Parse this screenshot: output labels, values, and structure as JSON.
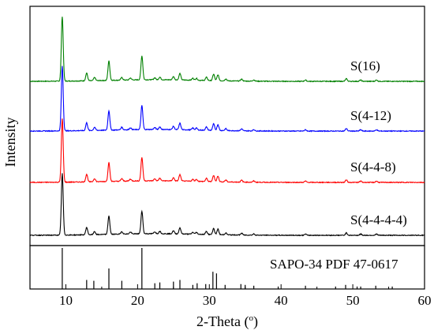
{
  "chart_data": {
    "type": "line",
    "xlabel": "2-Theta (",
    "xlabel_sup": "o",
    "xlabel_suffix": ")",
    "ylabel": "Intensity",
    "xlim": [
      5,
      60
    ],
    "xticks": [
      10,
      20,
      30,
      40,
      50,
      60
    ],
    "yticks": "none",
    "grid": false,
    "legend": "inline labels at right of each trace",
    "peaks": [
      {
        "x": 9.5,
        "h": 1.0
      },
      {
        "x": 12.9,
        "h": 0.12
      },
      {
        "x": 14.0,
        "h": 0.05
      },
      {
        "x": 16.0,
        "h": 0.3
      },
      {
        "x": 17.8,
        "h": 0.04
      },
      {
        "x": 19.0,
        "h": 0.03
      },
      {
        "x": 20.6,
        "h": 0.37
      },
      {
        "x": 22.4,
        "h": 0.03
      },
      {
        "x": 23.1,
        "h": 0.04
      },
      {
        "x": 25.0,
        "h": 0.05
      },
      {
        "x": 25.9,
        "h": 0.1
      },
      {
        "x": 27.7,
        "h": 0.03
      },
      {
        "x": 28.2,
        "h": 0.03
      },
      {
        "x": 29.6,
        "h": 0.05
      },
      {
        "x": 30.6,
        "h": 0.1
      },
      {
        "x": 31.2,
        "h": 0.09
      },
      {
        "x": 32.3,
        "h": 0.03
      },
      {
        "x": 34.5,
        "h": 0.03
      },
      {
        "x": 36.2,
        "h": 0.02
      },
      {
        "x": 43.4,
        "h": 0.02
      },
      {
        "x": 49.1,
        "h": 0.04
      },
      {
        "x": 51.1,
        "h": 0.02
      },
      {
        "x": 53.3,
        "h": 0.02
      }
    ],
    "series": [
      {
        "name": "S(16)",
        "color": "#008000",
        "offset": 3,
        "scale": 1.0
      },
      {
        "name": "S(4-12)",
        "color": "#0000ff",
        "offset": 2,
        "scale": 1.0
      },
      {
        "name": "S(4-4-8)",
        "color": "#ff0000",
        "offset": 1,
        "scale": 0.98
      },
      {
        "name": "S(4-4-4-4)",
        "color": "#000000",
        "offset": 0,
        "scale": 0.95
      }
    ],
    "reference": {
      "name": "SAPO-34 PDF 47-0617",
      "lines": [
        {
          "x": 9.5,
          "h": 1.0
        },
        {
          "x": 12.9,
          "h": 0.22
        },
        {
          "x": 13.9,
          "h": 0.2
        },
        {
          "x": 16.0,
          "h": 0.5
        },
        {
          "x": 17.8,
          "h": 0.2
        },
        {
          "x": 20.6,
          "h": 1.0
        },
        {
          "x": 22.4,
          "h": 0.14
        },
        {
          "x": 23.1,
          "h": 0.16
        },
        {
          "x": 25.0,
          "h": 0.18
        },
        {
          "x": 25.9,
          "h": 0.22
        },
        {
          "x": 27.7,
          "h": 0.1
        },
        {
          "x": 28.3,
          "h": 0.14
        },
        {
          "x": 29.5,
          "h": 0.12
        },
        {
          "x": 30.5,
          "h": 0.42
        },
        {
          "x": 31.0,
          "h": 0.38
        },
        {
          "x": 32.2,
          "h": 0.1
        },
        {
          "x": 34.4,
          "h": 0.12
        },
        {
          "x": 35.0,
          "h": 0.1
        },
        {
          "x": 36.2,
          "h": 0.08
        },
        {
          "x": 39.6,
          "h": 0.06
        },
        {
          "x": 43.4,
          "h": 0.08
        },
        {
          "x": 47.6,
          "h": 0.06
        },
        {
          "x": 49.0,
          "h": 0.1
        },
        {
          "x": 50.6,
          "h": 0.06
        },
        {
          "x": 51.1,
          "h": 0.06
        },
        {
          "x": 53.2,
          "h": 0.08
        },
        {
          "x": 55.5,
          "h": 0.06
        }
      ]
    }
  }
}
